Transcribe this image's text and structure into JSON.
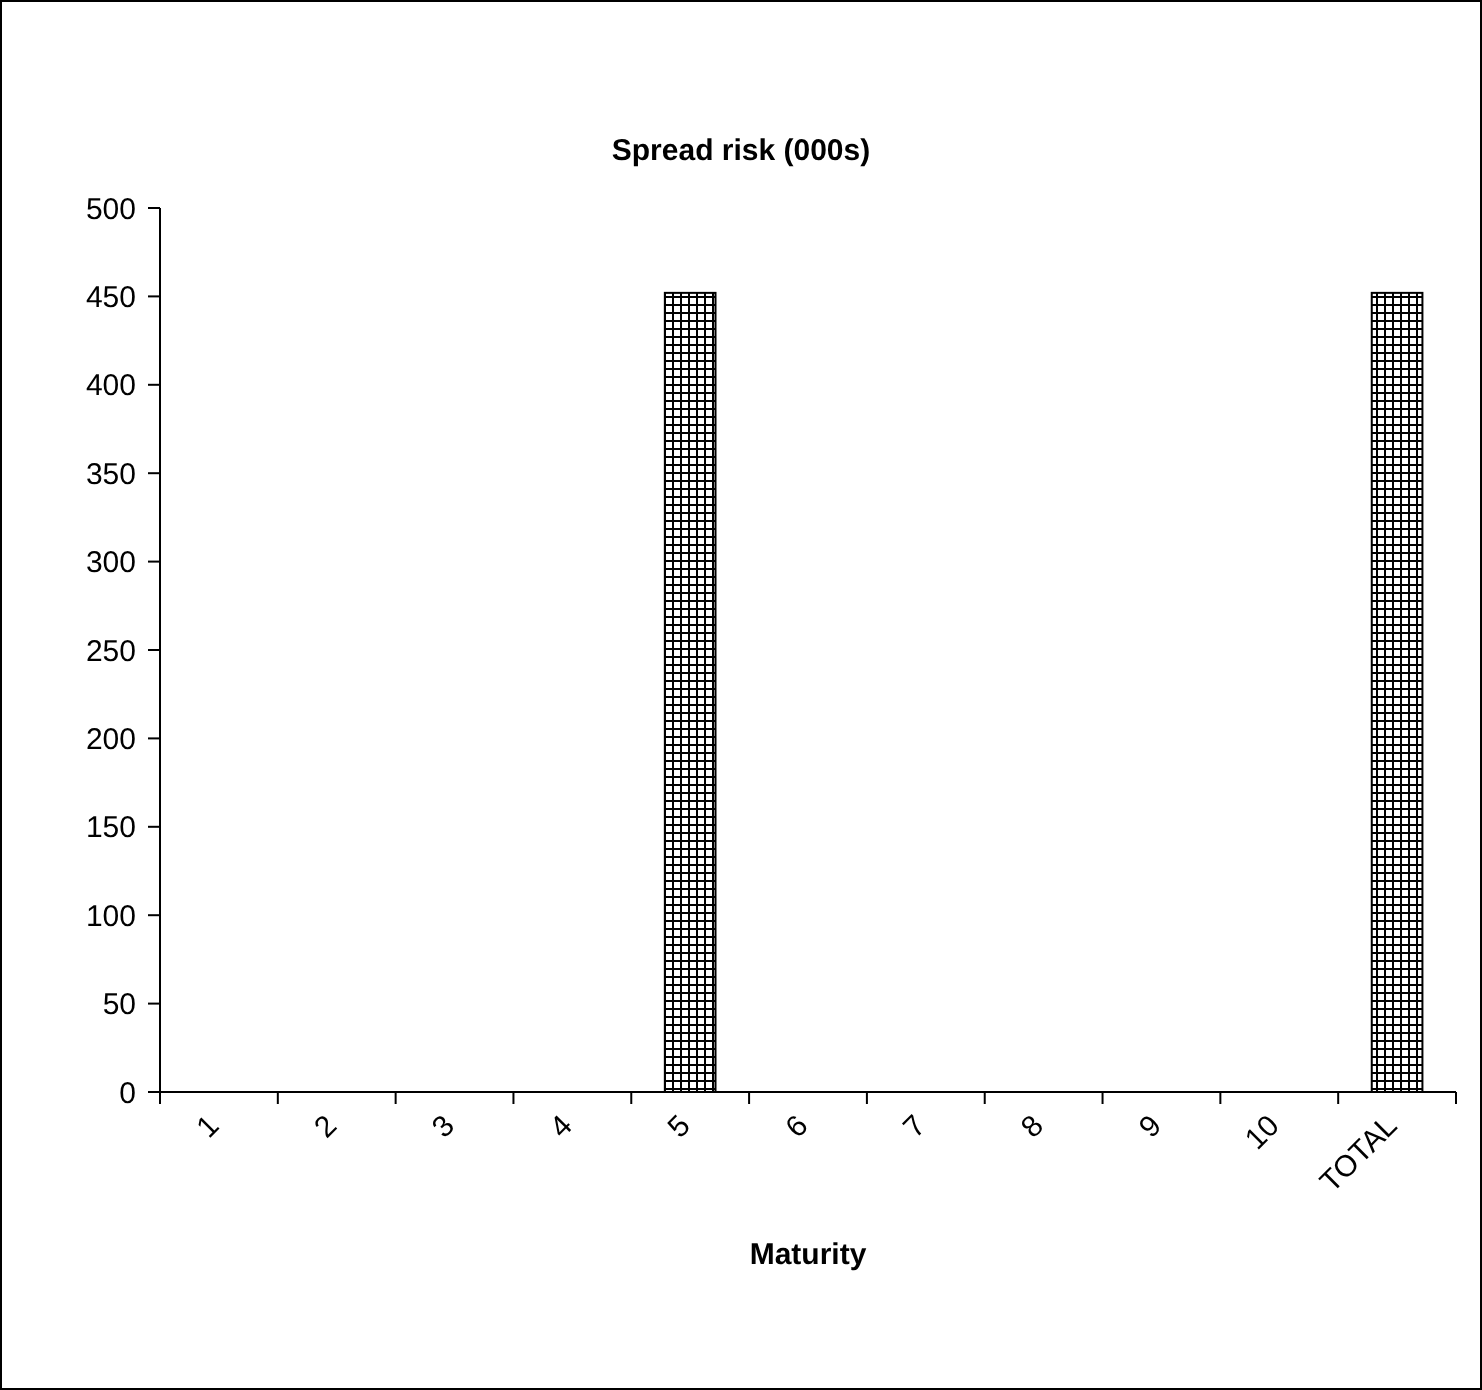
{
  "chart_data": {
    "type": "bar",
    "title": "Spread risk (000s)",
    "xlabel": "Maturity",
    "categories": [
      "1",
      "2",
      "3",
      "4",
      "5",
      "6",
      "7",
      "8",
      "9",
      "10",
      "TOTAL"
    ],
    "values": [
      0,
      0,
      0,
      0,
      452,
      0,
      0,
      0,
      0,
      0,
      452
    ],
    "color": "#000000",
    "ylim": [
      0,
      500
    ],
    "yticks": [
      0,
      50,
      100,
      150,
      200,
      250,
      300,
      350,
      400,
      450,
      500
    ],
    "grid": false
  }
}
